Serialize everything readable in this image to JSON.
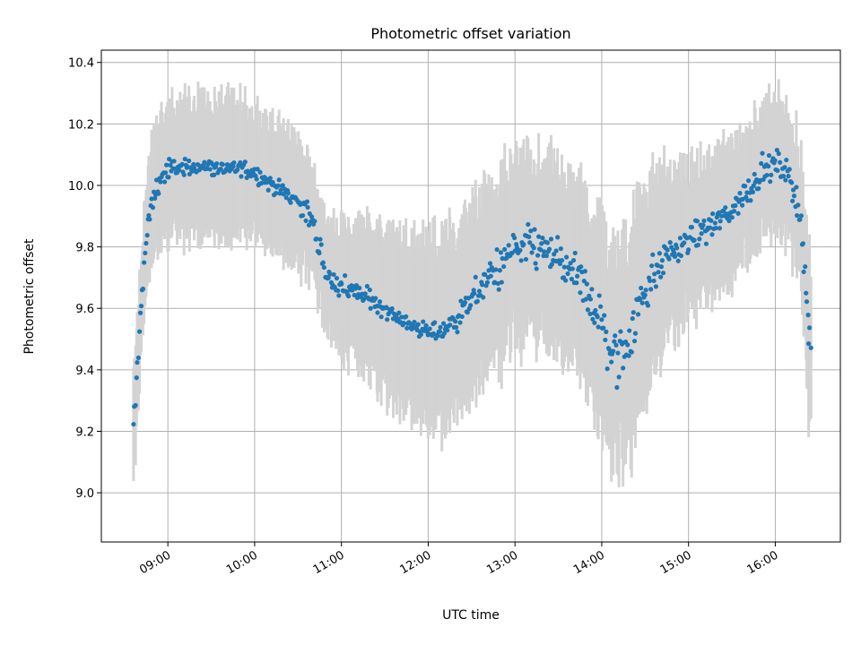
{
  "chart_data": {
    "type": "scatter",
    "title": "Photometric offset variation",
    "xlabel": "UTC time",
    "ylabel": "Photometric offset",
    "x_unit": "UTC hour of day",
    "x_ticks": [
      {
        "value": 9,
        "label": "09:00"
      },
      {
        "value": 10,
        "label": "10:00"
      },
      {
        "value": 11,
        "label": "11:00"
      },
      {
        "value": 12,
        "label": "12:00"
      },
      {
        "value": 13,
        "label": "13:00"
      },
      {
        "value": 14,
        "label": "14:00"
      },
      {
        "value": 15,
        "label": "15:00"
      },
      {
        "value": 16,
        "label": "16:00"
      }
    ],
    "y_ticks": [
      9.0,
      9.2,
      9.4,
      9.6,
      9.8,
      10.0,
      10.2,
      10.4
    ],
    "xlim": [
      "08:14",
      "16:45"
    ],
    "ylim": [
      8.84,
      10.44
    ],
    "grid": true,
    "marker_color": "#1f77b4",
    "errorbar_color": "#d3d3d3",
    "profile_times": [
      "08:36",
      "08:40",
      "08:44",
      "08:48",
      "08:52",
      "08:56",
      "09:00",
      "09:10",
      "09:20",
      "09:30",
      "09:40",
      "09:50",
      "10:00",
      "10:10",
      "10:20",
      "10:30",
      "10:38",
      "10:42",
      "10:46",
      "10:50",
      "11:00",
      "11:10",
      "11:20",
      "11:30",
      "11:40",
      "11:50",
      "12:00",
      "12:10",
      "12:20",
      "12:30",
      "12:40",
      "12:50",
      "13:00",
      "13:10",
      "13:20",
      "13:30",
      "13:40",
      "13:50",
      "14:00",
      "14:05",
      "14:10",
      "14:15",
      "14:20",
      "14:25",
      "14:30",
      "14:40",
      "14:50",
      "15:00",
      "15:10",
      "15:20",
      "15:30",
      "15:40",
      "15:50",
      "16:00",
      "16:05",
      "16:10",
      "16:15",
      "16:18",
      "16:20",
      "16:22",
      "16:25"
    ],
    "profile_values": [
      9.18,
      9.5,
      9.78,
      9.92,
      9.99,
      10.03,
      10.05,
      10.06,
      10.06,
      10.06,
      10.05,
      10.06,
      10.04,
      10.01,
      9.98,
      9.95,
      9.9,
      9.84,
      9.78,
      9.7,
      9.67,
      9.65,
      9.63,
      9.6,
      9.57,
      9.54,
      9.52,
      9.53,
      9.57,
      9.63,
      9.69,
      9.74,
      9.78,
      9.8,
      9.79,
      9.76,
      9.71,
      9.65,
      9.55,
      9.47,
      9.43,
      9.47,
      9.52,
      9.6,
      9.67,
      9.74,
      9.79,
      9.82,
      9.85,
      9.88,
      9.92,
      9.98,
      10.04,
      10.07,
      10.06,
      10.02,
      9.96,
      9.88,
      9.75,
      9.58,
      9.42
    ],
    "scatter_amplitude": [
      0.03,
      0.03,
      0.03,
      0.03,
      0.03,
      0.03,
      0.02,
      0.02,
      0.02,
      0.02,
      0.02,
      0.02,
      0.02,
      0.02,
      0.02,
      0.02,
      0.03,
      0.03,
      0.03,
      0.03,
      0.03,
      0.03,
      0.02,
      0.02,
      0.02,
      0.02,
      0.02,
      0.03,
      0.03,
      0.03,
      0.04,
      0.05,
      0.05,
      0.05,
      0.05,
      0.05,
      0.05,
      0.06,
      0.07,
      0.08,
      0.08,
      0.07,
      0.06,
      0.06,
      0.05,
      0.04,
      0.04,
      0.03,
      0.03,
      0.03,
      0.03,
      0.03,
      0.03,
      0.03,
      0.03,
      0.03,
      0.04,
      0.05,
      0.06,
      0.06,
      0.06
    ],
    "errorbar_halfwidth": [
      0.17,
      0.17,
      0.17,
      0.18,
      0.18,
      0.2,
      0.2,
      0.21,
      0.22,
      0.22,
      0.22,
      0.21,
      0.2,
      0.2,
      0.2,
      0.2,
      0.19,
      0.16,
      0.17,
      0.18,
      0.2,
      0.22,
      0.24,
      0.25,
      0.27,
      0.28,
      0.3,
      0.3,
      0.29,
      0.28,
      0.27,
      0.28,
      0.28,
      0.28,
      0.28,
      0.28,
      0.28,
      0.3,
      0.32,
      0.32,
      0.33,
      0.33,
      0.33,
      0.32,
      0.3,
      0.27,
      0.25,
      0.23,
      0.22,
      0.22,
      0.21,
      0.2,
      0.2,
      0.2,
      0.2,
      0.2,
      0.2,
      0.2,
      0.22,
      0.24,
      0.28
    ]
  }
}
